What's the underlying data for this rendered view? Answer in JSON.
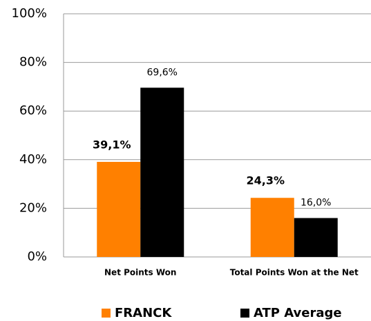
{
  "chart_data": {
    "type": "bar",
    "categories": [
      "Net Points Won",
      "Total Points Won at the Net"
    ],
    "series": [
      {
        "name": "FRANCK",
        "color": "#ff8000",
        "values": [
          39.1,
          24.3
        ],
        "value_labels": [
          "39,1%",
          "24,3%"
        ]
      },
      {
        "name": "ATP Average",
        "color": "#000000",
        "values": [
          69.6,
          16.0
        ],
        "value_labels": [
          "69,6%",
          "16,0%"
        ]
      }
    ],
    "ylim": [
      0,
      100
    ],
    "yticks": [
      {
        "value": 0,
        "label": "0%"
      },
      {
        "value": 20,
        "label": "20%"
      },
      {
        "value": 40,
        "label": "40%"
      },
      {
        "value": 60,
        "label": "60%"
      },
      {
        "value": 80,
        "label": "80%"
      },
      {
        "value": 100,
        "label": "100%"
      }
    ],
    "grid": true,
    "legend": "bottom"
  }
}
